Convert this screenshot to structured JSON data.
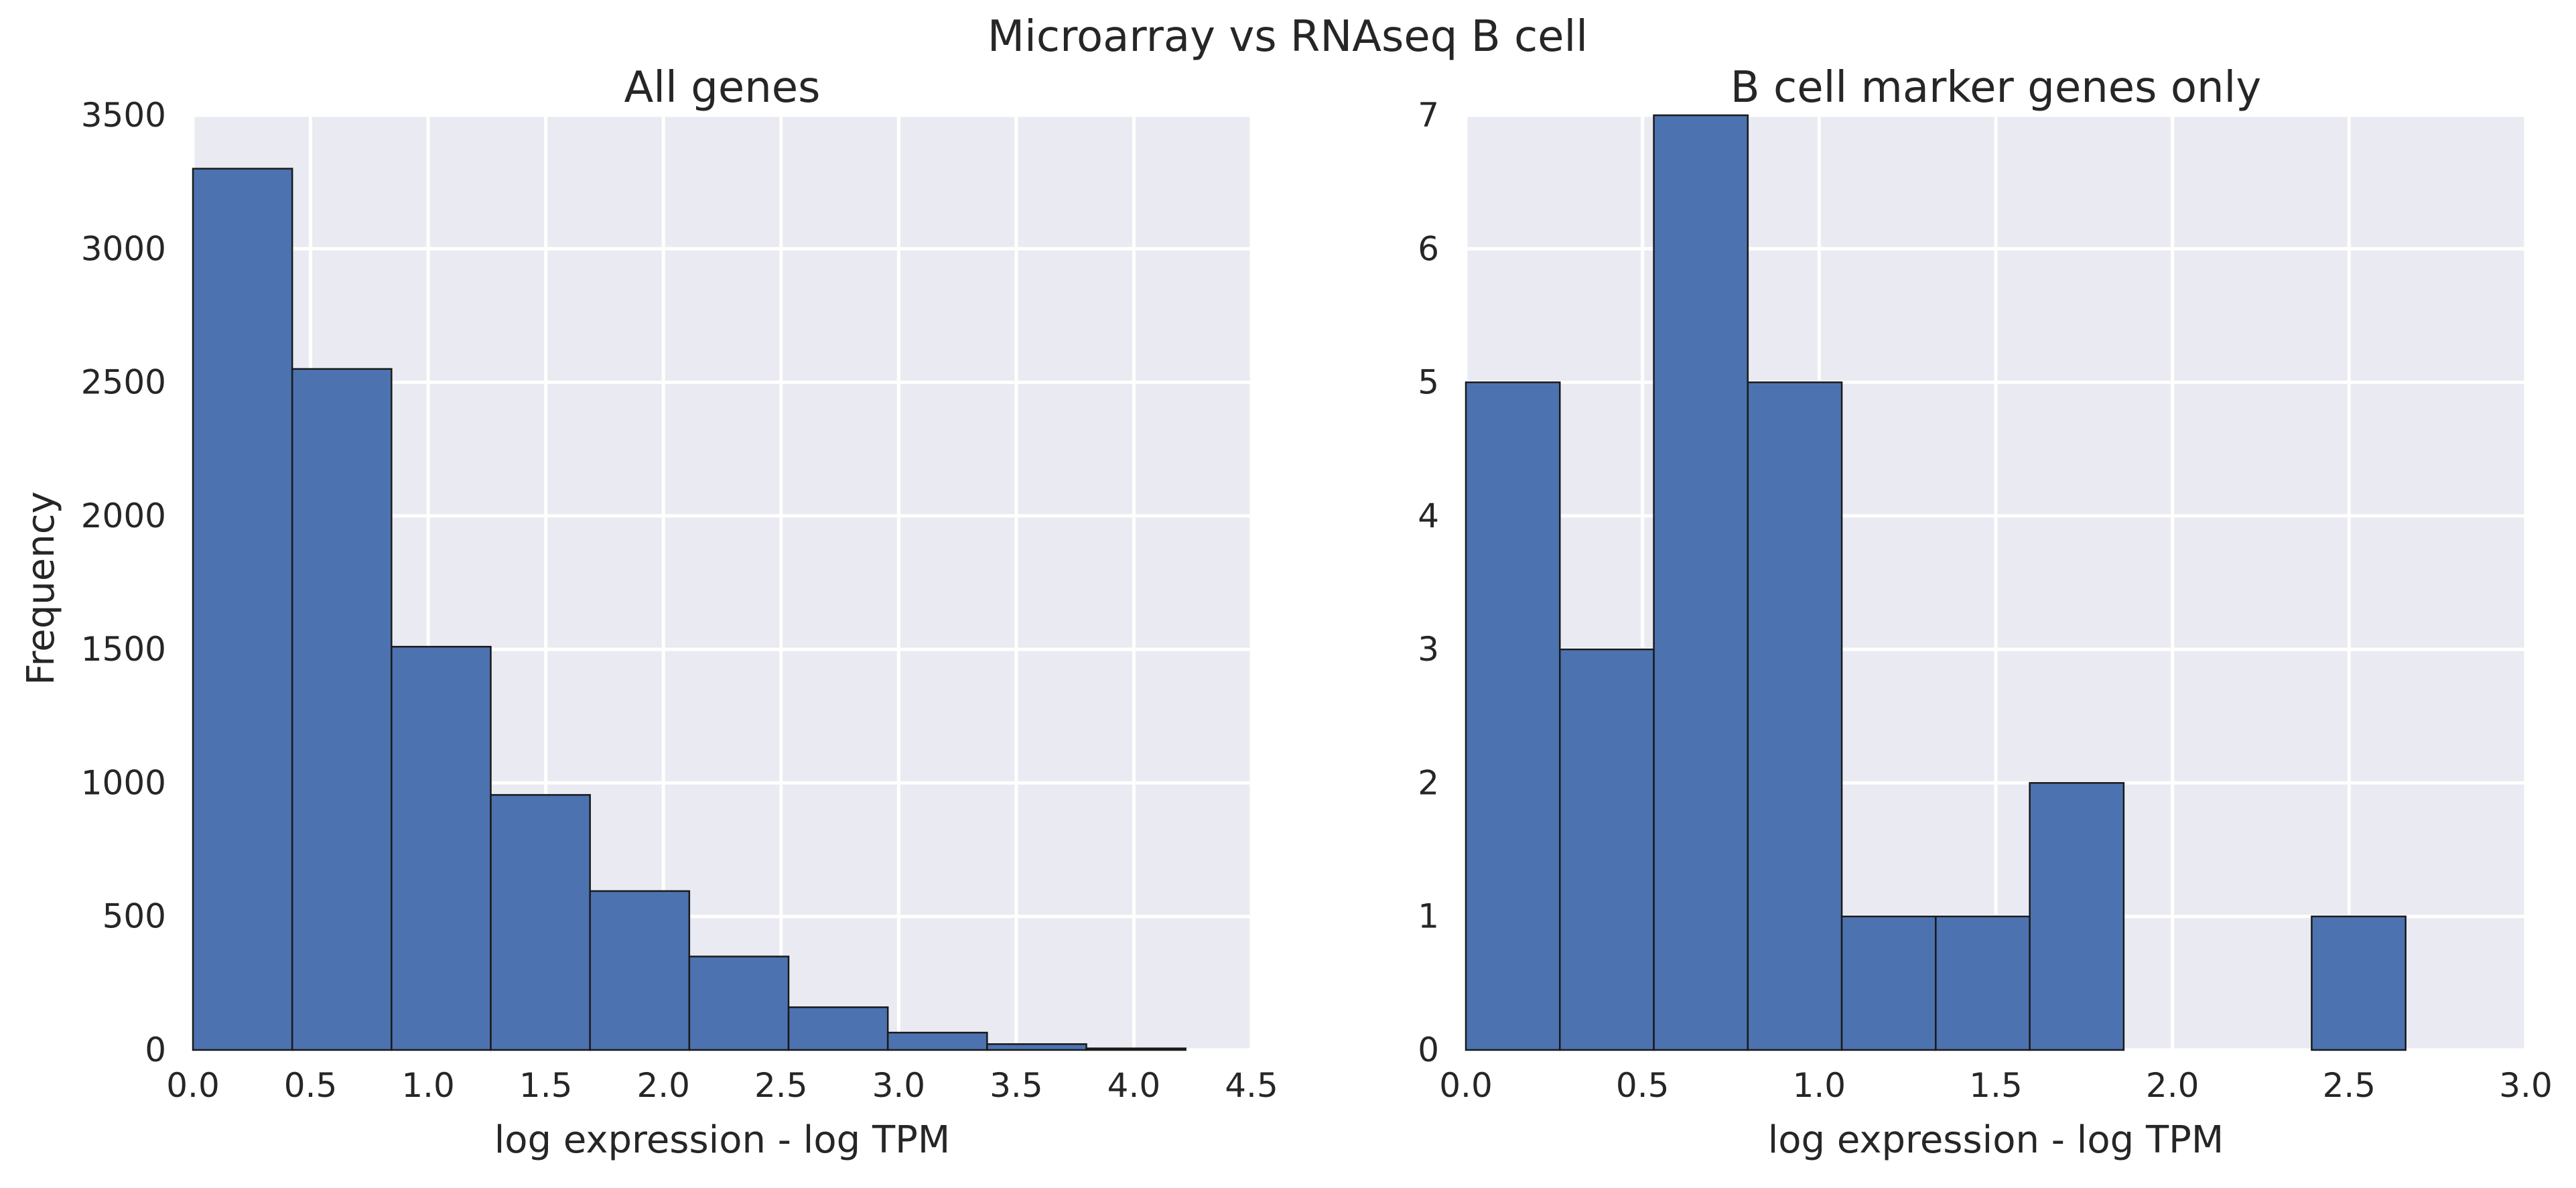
{
  "suptitle": "Microarray vs RNAseq B cell",
  "ylabel": "Frequency",
  "chart_data": [
    {
      "type": "bar",
      "title": "All genes",
      "xlabel": "log expression - log TPM",
      "ylabel": "Frequency",
      "xlim": [
        0,
        4.5
      ],
      "ylim": [
        0,
        3500
      ],
      "xticks": [
        "0.0",
        "0.5",
        "1.0",
        "1.5",
        "2.0",
        "2.5",
        "3.0",
        "3.5",
        "4.0",
        "4.5"
      ],
      "yticks": [
        "0",
        "500",
        "1000",
        "1500",
        "2000",
        "2500",
        "3000",
        "3500"
      ],
      "bin_edges": [
        0.0,
        0.422,
        0.844,
        1.266,
        1.688,
        2.11,
        2.532,
        2.954,
        3.376,
        3.798,
        4.22
      ],
      "values": [
        3300,
        2550,
        1510,
        955,
        595,
        350,
        160,
        65,
        22,
        6
      ],
      "grid": true,
      "bar_color": "#4c72b0"
    },
    {
      "type": "bar",
      "title": "B cell marker genes only",
      "xlabel": "log expression - log TPM",
      "xlim": [
        0,
        3.0
      ],
      "ylim": [
        0,
        7
      ],
      "xticks": [
        "0.0",
        "0.5",
        "1.0",
        "1.5",
        "2.0",
        "2.5",
        "3.0"
      ],
      "yticks": [
        "0",
        "1",
        "2",
        "3",
        "4",
        "5",
        "6",
        "7"
      ],
      "bin_edges": [
        0.0,
        0.266,
        0.532,
        0.798,
        1.064,
        1.33,
        1.596,
        1.862,
        2.128,
        2.394,
        2.66
      ],
      "values": [
        5,
        3,
        7,
        5,
        1,
        1,
        2,
        0,
        0,
        1
      ],
      "grid": true,
      "bar_color": "#4c72b0"
    }
  ]
}
